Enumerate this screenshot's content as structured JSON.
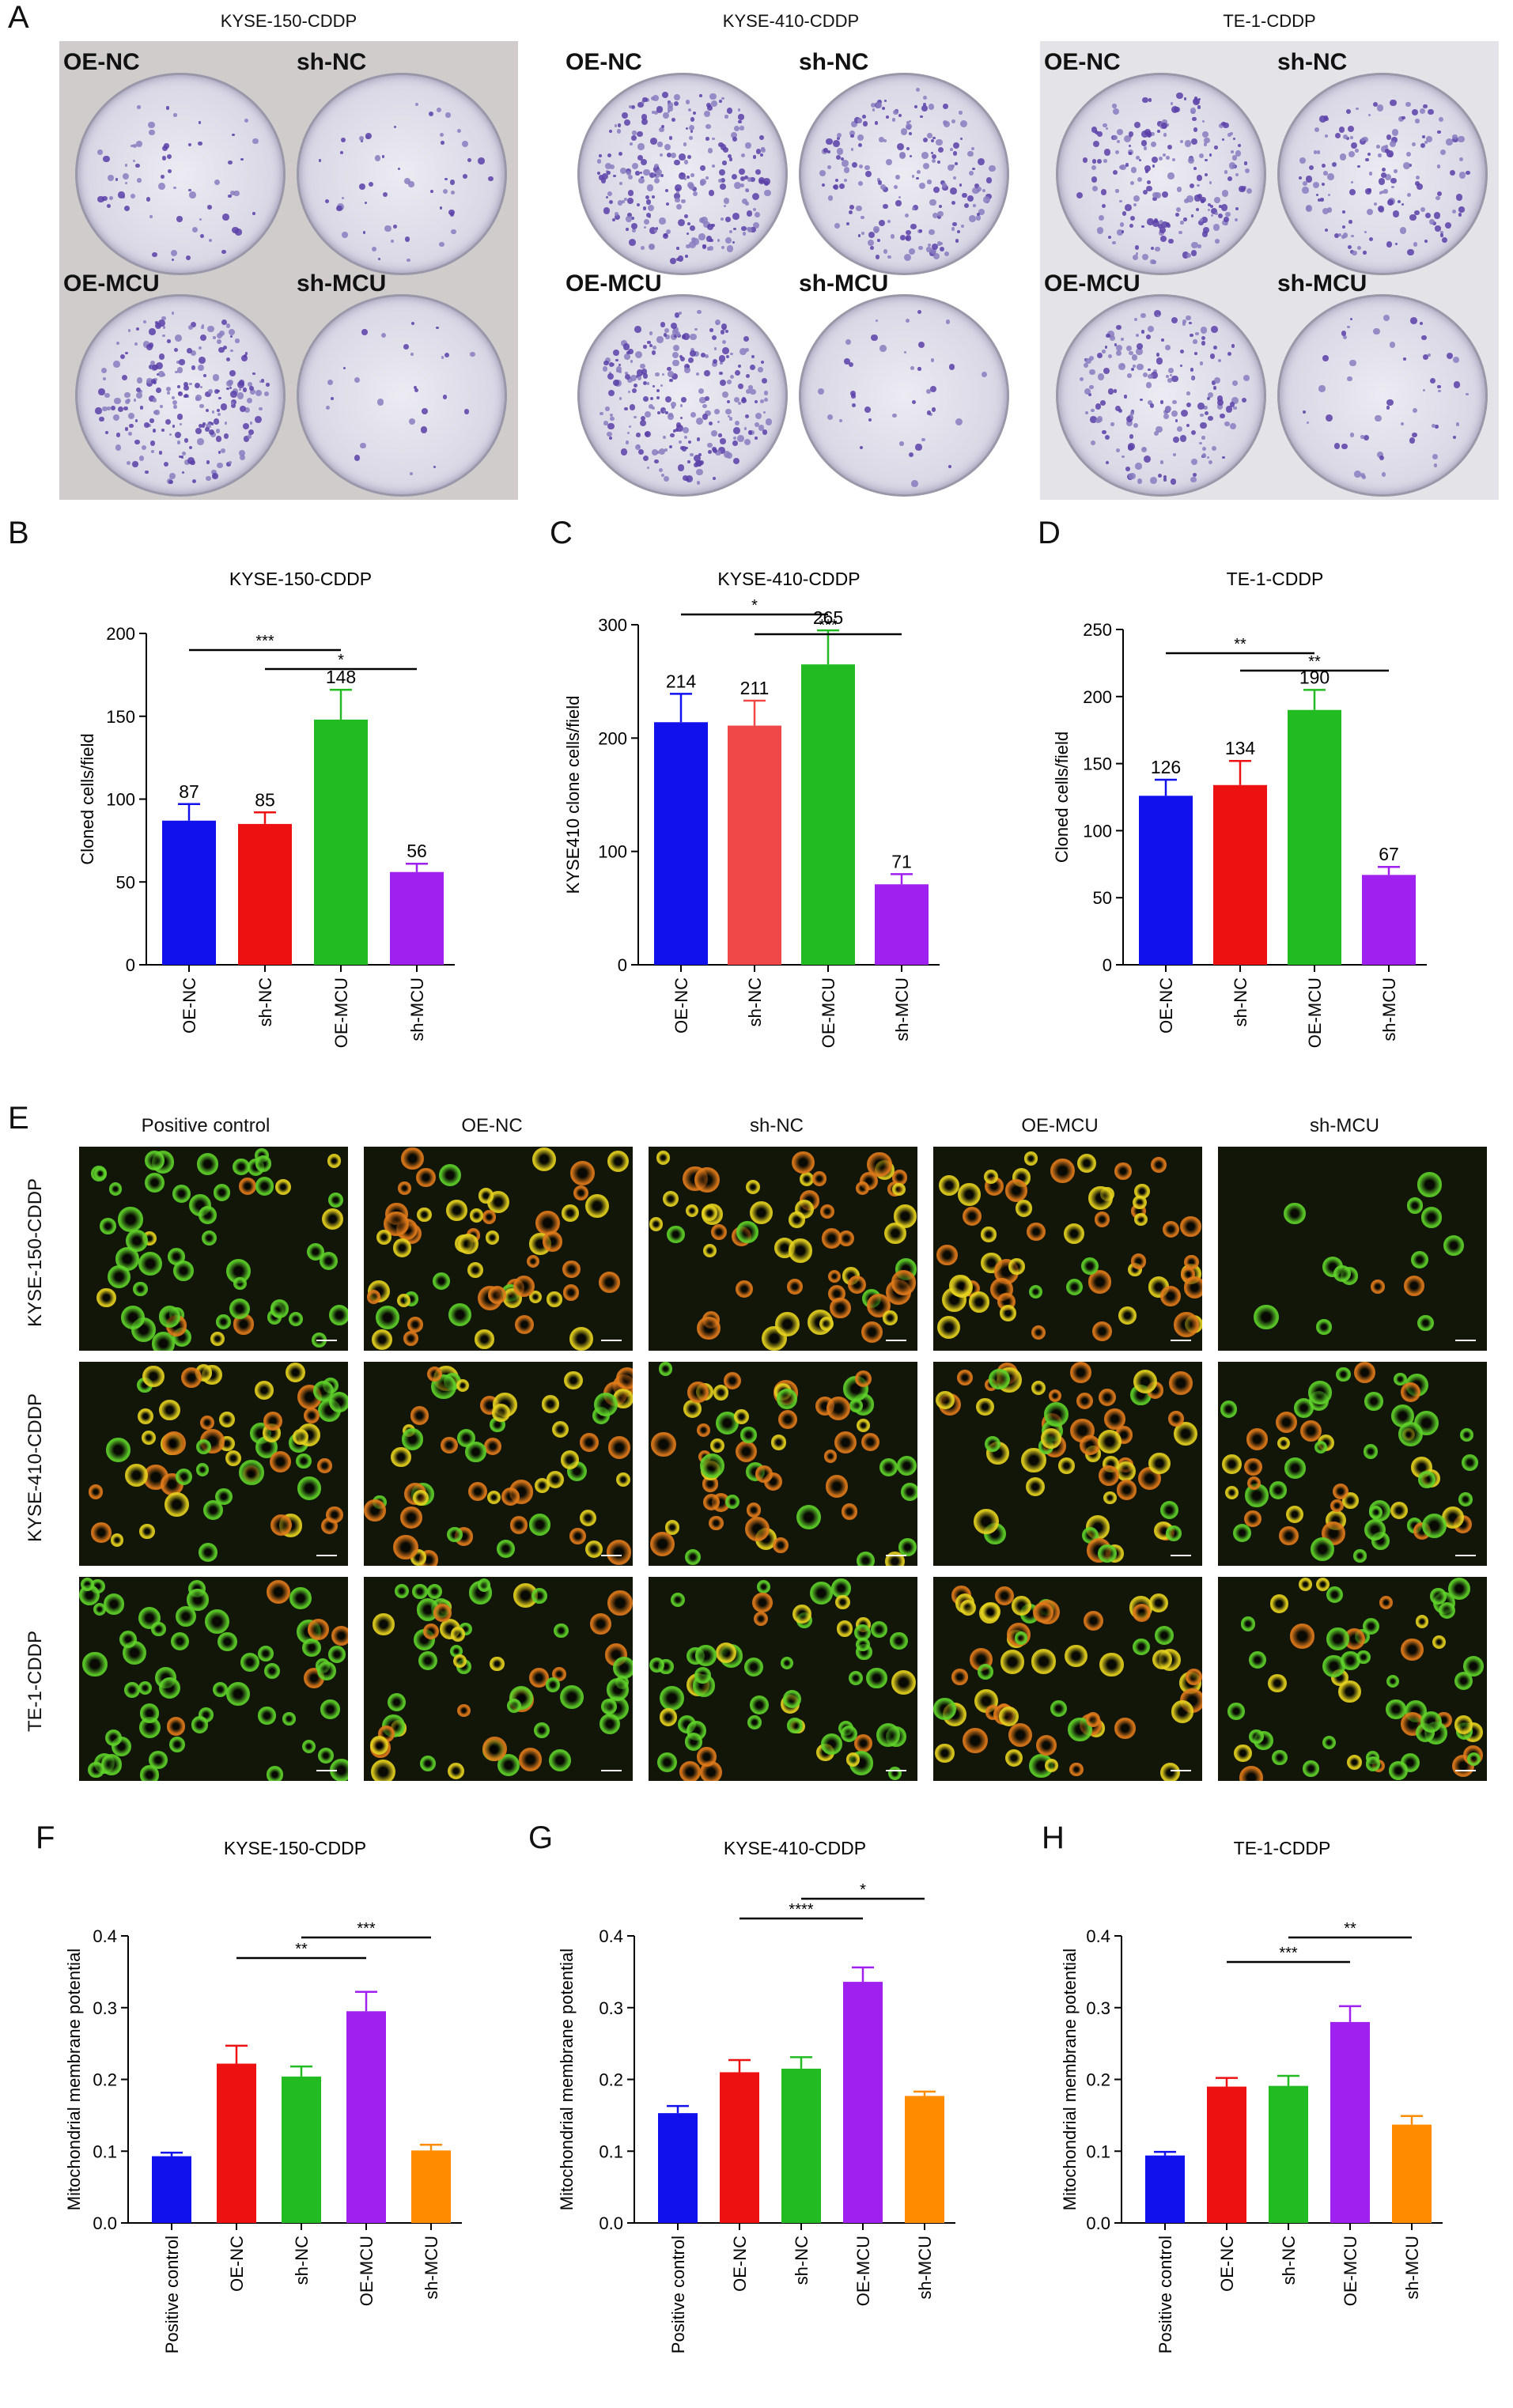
{
  "panels": {
    "A": "A",
    "B": "B",
    "C": "C",
    "D": "D",
    "E": "E",
    "F": "F",
    "G": "G",
    "H": "H"
  },
  "photo_panel": {
    "titles": [
      "KYSE-150-CDDP",
      "KYSE-410-CDDP",
      "TE-1-CDDP"
    ],
    "dish_labels": [
      "OE-NC",
      "sh-NC",
      "OE-MCU",
      "sh-MCU"
    ],
    "stain_colors": {
      "light": "#b9b2d6",
      "medium": "#8a7dc0",
      "dark": "#5b3fa8"
    }
  },
  "fluorescence_panel": {
    "columns": [
      "Positive control",
      "OE-NC",
      "sh-NC",
      "OE-MCU",
      "sh-MCU"
    ],
    "rows": [
      "KYSE-150-CDDP",
      "KYSE-410-CDDP",
      "TE-1-CDDP"
    ],
    "colors": {
      "green": "#5fd22a",
      "orange": "#e07a1a",
      "yellow": "#e6d21f"
    }
  },
  "chart_data": [
    {
      "id": "B",
      "type": "bar",
      "title": "KYSE-150-CDDP",
      "ylabel": "Cloned cells/field",
      "categories": [
        "OE-NC",
        "sh-NC",
        "OE-MCU",
        "sh-MCU"
      ],
      "values": [
        87,
        85,
        148,
        56
      ],
      "errors": [
        10,
        7,
        18,
        5
      ],
      "value_labels": [
        "87",
        "85",
        "148",
        "56"
      ],
      "colors": [
        "#1111ee",
        "#ee1111",
        "#22bb22",
        "#a020f0"
      ],
      "ylim": [
        0,
        200
      ],
      "yticks": [
        0,
        50,
        100,
        150,
        200
      ],
      "significance": [
        {
          "from": 0,
          "to": 2,
          "label": "***"
        },
        {
          "from": 1,
          "to": 3,
          "label": "*"
        }
      ]
    },
    {
      "id": "C",
      "type": "bar",
      "title": "KYSE-410-CDDP",
      "ylabel": "KYSE410 clone cells/field",
      "categories": [
        "OE-NC",
        "sh-NC",
        "OE-MCU",
        "sh-MCU"
      ],
      "values": [
        214,
        211,
        265,
        71
      ],
      "errors": [
        25,
        22,
        30,
        9
      ],
      "value_labels": [
        "214",
        "211",
        "265",
        "71"
      ],
      "colors": [
        "#1111ee",
        "#f04848",
        "#22bb22",
        "#a020f0"
      ],
      "ylim": [
        0,
        300
      ],
      "yticks": [
        0,
        100,
        200,
        300
      ],
      "significance": [
        {
          "from": 0,
          "to": 2,
          "label": "*"
        },
        {
          "from": 1,
          "to": 3,
          "label": "***"
        }
      ]
    },
    {
      "id": "D",
      "type": "bar",
      "title": "TE-1-CDDP",
      "ylabel": "Cloned cells/field",
      "categories": [
        "OE-NC",
        "sh-NC",
        "OE-MCU",
        "sh-MCU"
      ],
      "values": [
        126,
        134,
        190,
        67
      ],
      "errors": [
        12,
        18,
        15,
        6
      ],
      "value_labels": [
        "126",
        "134",
        "190",
        "67"
      ],
      "colors": [
        "#1111ee",
        "#ee1111",
        "#22bb22",
        "#a020f0"
      ],
      "ylim": [
        0,
        250
      ],
      "yticks": [
        0,
        50,
        100,
        150,
        200,
        250
      ],
      "significance": [
        {
          "from": 0,
          "to": 2,
          "label": "**"
        },
        {
          "from": 1,
          "to": 3,
          "label": "**"
        }
      ]
    },
    {
      "id": "F",
      "type": "bar",
      "title": "KYSE-150-CDDP",
      "ylabel": "Mitochondrial membrane potential",
      "categories": [
        "Positive control",
        "OE-NC",
        "sh-NC",
        "OE-MCU",
        "sh-MCU"
      ],
      "values": [
        0.093,
        0.222,
        0.204,
        0.295,
        0.101
      ],
      "errors": [
        0.005,
        0.025,
        0.014,
        0.027,
        0.008
      ],
      "colors": [
        "#1111ee",
        "#ee1111",
        "#22bb22",
        "#a020f0",
        "#ff8c00"
      ],
      "ylim": [
        0,
        0.4
      ],
      "yticks": [
        0.0,
        0.1,
        0.2,
        0.3,
        0.4
      ],
      "significance": [
        {
          "from": 1,
          "to": 3,
          "label": "**"
        },
        {
          "from": 2,
          "to": 4,
          "label": "***"
        }
      ]
    },
    {
      "id": "G",
      "type": "bar",
      "title": "KYSE-410-CDDP",
      "ylabel": "Mitochondrial membrane potential",
      "categories": [
        "Positive control",
        "OE-NC",
        "sh-NC",
        "OE-MCU",
        "sh-MCU"
      ],
      "values": [
        0.153,
        0.21,
        0.215,
        0.336,
        0.177
      ],
      "errors": [
        0.01,
        0.017,
        0.016,
        0.02,
        0.006
      ],
      "colors": [
        "#1111ee",
        "#ee1111",
        "#22bb22",
        "#a020f0",
        "#ff8c00"
      ],
      "ylim": [
        0,
        0.4
      ],
      "yticks": [
        0.0,
        0.1,
        0.2,
        0.3,
        0.4
      ],
      "significance": [
        {
          "from": 1,
          "to": 3,
          "label": "****"
        },
        {
          "from": 2,
          "to": 4,
          "label": "*"
        }
      ]
    },
    {
      "id": "H",
      "type": "bar",
      "title": "TE-1-CDDP",
      "ylabel": "Mitochondrial membrane potential",
      "categories": [
        "Positive control",
        "OE-NC",
        "sh-NC",
        "OE-MCU",
        "sh-MCU"
      ],
      "values": [
        0.094,
        0.19,
        0.191,
        0.28,
        0.137
      ],
      "errors": [
        0.005,
        0.012,
        0.014,
        0.022,
        0.012
      ],
      "colors": [
        "#1111ee",
        "#ee1111",
        "#22bb22",
        "#a020f0",
        "#ff8c00"
      ],
      "ylim": [
        0,
        0.4
      ],
      "yticks": [
        0.0,
        0.1,
        0.2,
        0.3,
        0.4
      ],
      "significance": [
        {
          "from": 1,
          "to": 3,
          "label": "***"
        },
        {
          "from": 2,
          "to": 4,
          "label": "**"
        }
      ]
    }
  ]
}
